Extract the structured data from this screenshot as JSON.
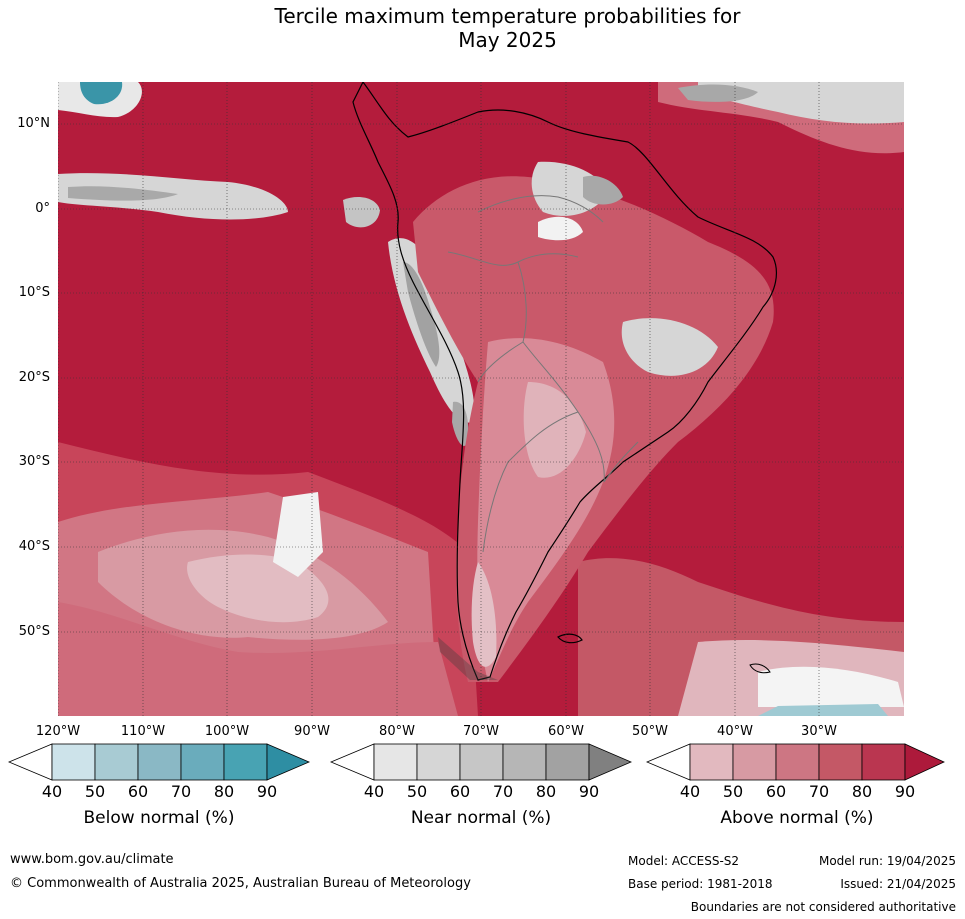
{
  "title": {
    "line1": "Tercile maximum temperature probabilities for",
    "line2": "May 2025"
  },
  "map": {
    "lat_labels": [
      "10°N",
      "0°",
      "10°S",
      "20°S",
      "30°S",
      "40°S",
      "50°S"
    ],
    "lon_labels": [
      "120°W",
      "110°W",
      "100°W",
      "90°W",
      "80°W",
      "70°W",
      "60°W",
      "50°W",
      "40°W",
      "30°W"
    ],
    "colors": {
      "above_dark": "#b41c3c",
      "above_mid": "#c8455a",
      "above_light": "#d68a98",
      "near": "#d6d6d6",
      "near_dark": "#9f9f9f",
      "below": "#3a95a8",
      "land_border": "#000000",
      "country_border": "#777777"
    }
  },
  "colorbars": [
    {
      "label": "Below normal (%)",
      "ticks": [
        "40",
        "50",
        "60",
        "70",
        "80",
        "90"
      ],
      "colors": [
        "#ffffff",
        "#cde3ea",
        "#a8cbd3",
        "#8ab8c5",
        "#6aacbc",
        "#48a3b3",
        "#2e8ea3"
      ]
    },
    {
      "label": "Near normal (%)",
      "ticks": [
        "40",
        "50",
        "60",
        "70",
        "80",
        "90"
      ],
      "colors": [
        "#ffffff",
        "#e6e6e6",
        "#d6d6d6",
        "#c6c6c6",
        "#b6b6b6",
        "#a2a2a2",
        "#808080"
      ]
    },
    {
      "label": "Above normal (%)",
      "ticks": [
        "40",
        "50",
        "60",
        "70",
        "80",
        "90"
      ],
      "colors": [
        "#ffffff",
        "#e2b9bf",
        "#d79aa3",
        "#cd7683",
        "#c45866",
        "#ba3650",
        "#ad1a3b"
      ]
    }
  ],
  "footer": {
    "website": "www.bom.gov.au/climate",
    "copyright": "© Commonwealth of Australia 2025, Australian Bureau of Meteorology",
    "model": "Model: ACCESS-S2",
    "base_period": "Base period: 1981-2018",
    "model_run": "Model run: 19/04/2025",
    "issued": "Issued: 21/04/2025",
    "disclaimer": "Boundaries are not considered authoritative"
  }
}
